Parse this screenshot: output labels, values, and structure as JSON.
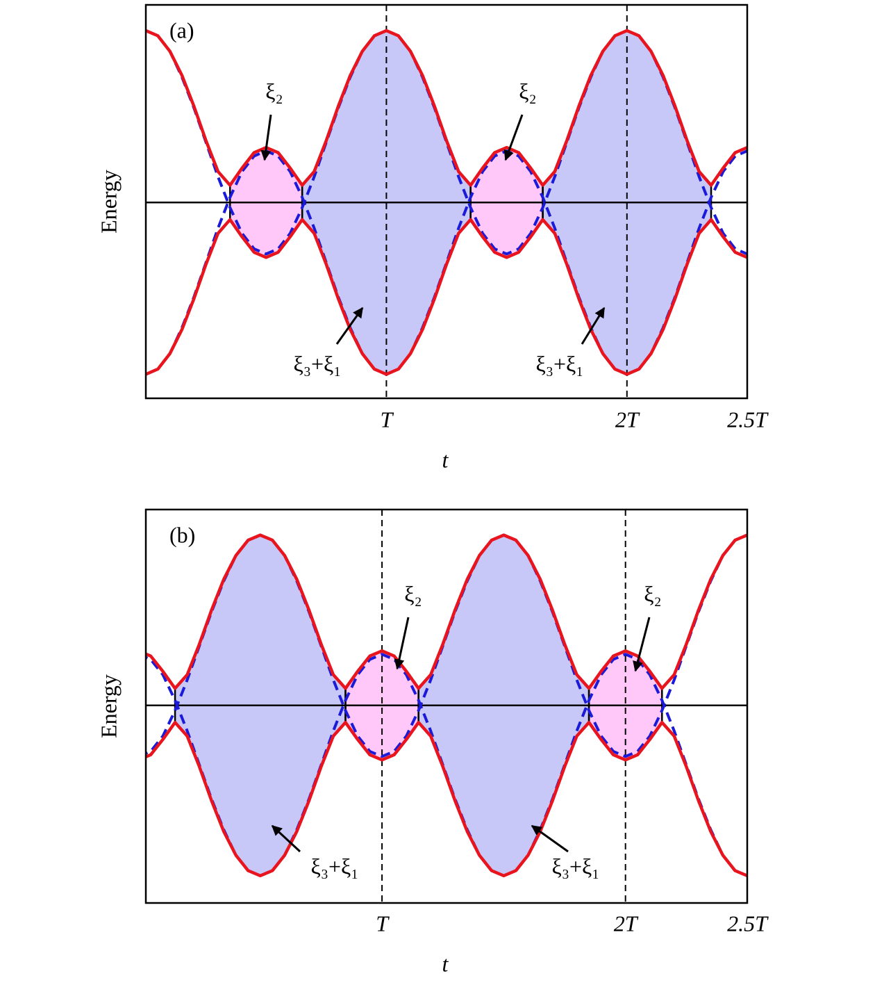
{
  "chart_data": [
    {
      "type": "line",
      "panel_label": "(a)",
      "ylabel": "Energy",
      "xlabel": "t",
      "xlim": [
        0,
        2.5
      ],
      "ylim": [
        -1.14,
        1.15
      ],
      "xticks": [
        {
          "value": 1,
          "label": "T"
        },
        {
          "value": 2,
          "label": "2T"
        },
        {
          "value": 2.5,
          "label": "2.5T"
        }
      ],
      "grid": "x",
      "baseline": 0,
      "x": [
        0,
        0.05,
        0.1,
        0.15,
        0.2,
        0.25,
        0.3,
        0.35,
        0.4,
        0.45,
        0.5,
        0.55,
        0.6,
        0.65,
        0.7,
        0.75,
        0.8,
        0.85,
        0.9,
        0.95,
        1,
        1.05,
        1.1,
        1.15,
        1.2,
        1.25,
        1.3,
        1.35,
        1.4,
        1.45,
        1.5,
        1.55,
        1.6,
        1.65,
        1.7,
        1.75,
        1.8,
        1.85,
        1.9,
        1.95,
        2,
        2.05,
        2.1,
        2.15,
        2.2,
        2.25,
        2.3,
        2.35,
        2.4,
        2.45,
        2.5
      ],
      "series": [
        {
          "color": "#e8141e",
          "dash": false,
          "values": [
            1,
            0.97,
            0.88,
            0.74,
            0.56,
            0.36,
            0.18,
            0.1,
            0.2,
            0.29,
            0.32,
            0.29,
            0.2,
            0.1,
            0.18,
            0.36,
            0.56,
            0.74,
            0.88,
            0.97,
            1,
            0.97,
            0.88,
            0.74,
            0.56,
            0.36,
            0.18,
            0.1,
            0.2,
            0.29,
            0.32,
            0.29,
            0.2,
            0.1,
            0.18,
            0.36,
            0.56,
            0.74,
            0.88,
            0.97,
            1,
            0.97,
            0.88,
            0.74,
            0.56,
            0.36,
            0.18,
            0.1,
            0.2,
            0.29,
            0.32
          ]
        },
        {
          "color": "#e8141e",
          "dash": false,
          "values": [
            -1,
            -0.97,
            -0.88,
            -0.74,
            -0.56,
            -0.36,
            -0.18,
            -0.1,
            -0.2,
            -0.29,
            -0.32,
            -0.29,
            -0.2,
            -0.1,
            -0.18,
            -0.36,
            -0.56,
            -0.74,
            -0.88,
            -0.97,
            -1,
            -0.97,
            -0.88,
            -0.74,
            -0.56,
            -0.36,
            -0.18,
            -0.1,
            -0.2,
            -0.29,
            -0.32,
            -0.29,
            -0.2,
            -0.1,
            -0.18,
            -0.36,
            -0.56,
            -0.74,
            -0.88,
            -0.97,
            -1,
            -0.97,
            -0.88,
            -0.74,
            -0.56,
            -0.36,
            -0.18,
            -0.1,
            -0.2,
            -0.29,
            -0.32
          ]
        },
        {
          "color": "#1a1ad8",
          "dash": true,
          "values": [
            1,
            0.97,
            0.88,
            0.73,
            0.55,
            0.35,
            0.15,
            -0.03,
            -0.18,
            -0.27,
            -0.3,
            -0.27,
            -0.18,
            -0.03,
            0.15,
            0.35,
            0.55,
            0.73,
            0.88,
            0.97,
            1,
            0.97,
            0.88,
            0.73,
            0.55,
            0.35,
            0.15,
            -0.03,
            -0.18,
            -0.27,
            -0.3,
            -0.27,
            -0.18,
            -0.03,
            0.15,
            0.35,
            0.55,
            0.73,
            0.88,
            0.97,
            1,
            0.97,
            0.88,
            0.73,
            0.55,
            0.35,
            0.15,
            -0.03,
            -0.18,
            -0.27,
            -0.3
          ]
        },
        {
          "color": "#1a1ad8",
          "dash": true,
          "values": [
            -1,
            -0.97,
            -0.88,
            -0.73,
            -0.55,
            -0.35,
            -0.15,
            0.03,
            0.18,
            0.27,
            0.3,
            0.27,
            0.18,
            0.03,
            -0.15,
            -0.35,
            -0.55,
            -0.73,
            -0.88,
            -0.97,
            -1,
            -0.97,
            -0.88,
            -0.73,
            -0.55,
            -0.35,
            -0.15,
            0.03,
            0.18,
            0.27,
            0.3,
            0.27,
            0.18,
            0.03,
            -0.15,
            -0.35,
            -0.55,
            -0.73,
            -0.88,
            -0.97,
            -1,
            -0.97,
            -0.88,
            -0.73,
            -0.55,
            -0.35,
            -0.15,
            0.03,
            0.18,
            0.27,
            0.3
          ]
        }
      ],
      "regions": [
        {
          "x": [
            0.35,
            0.65
          ],
          "color": "#ffc8f8"
        },
        {
          "x": [
            0.65,
            1.35
          ],
          "color": "#c8c8f8"
        },
        {
          "x": [
            1.35,
            1.65
          ],
          "color": "#ffc8f8"
        },
        {
          "x": [
            1.65,
            2.35
          ],
          "color": "#c8c8f8"
        }
      ],
      "annotations": [
        {
          "text": "ξ₂"
        },
        {
          "text": "ξ₂"
        },
        {
          "text": "ξ₃+ξ₁"
        },
        {
          "text": "ξ₃+ξ₁"
        }
      ]
    },
    {
      "type": "line",
      "panel_label": "(b)",
      "ylabel": "Energy",
      "xlabel": "t",
      "xlim": [
        0.03,
        2.5
      ],
      "ylim": [
        -1.16,
        1.15
      ],
      "xticks": [
        {
          "value": 1,
          "label": "T"
        },
        {
          "value": 2,
          "label": "2T"
        },
        {
          "value": 2.5,
          "label": "2.5T"
        }
      ],
      "grid": "x",
      "baseline": 0,
      "x": [
        0,
        0.05,
        0.1,
        0.15,
        0.2,
        0.25,
        0.3,
        0.35,
        0.4,
        0.45,
        0.5,
        0.55,
        0.6,
        0.65,
        0.7,
        0.75,
        0.8,
        0.85,
        0.9,
        0.95,
        1,
        1.05,
        1.1,
        1.15,
        1.2,
        1.25,
        1.3,
        1.35,
        1.4,
        1.45,
        1.5,
        1.55,
        1.6,
        1.65,
        1.7,
        1.75,
        1.8,
        1.85,
        1.9,
        1.95,
        2,
        2.05,
        2.1,
        2.15,
        2.2,
        2.25,
        2.3,
        2.35,
        2.4,
        2.45,
        2.5
      ],
      "series": [
        {
          "color": "#e8141e",
          "dash": false,
          "values": [
            0.32,
            0.29,
            0.2,
            0.1,
            0.18,
            0.36,
            0.56,
            0.74,
            0.88,
            0.97,
            1,
            0.97,
            0.88,
            0.74,
            0.56,
            0.36,
            0.18,
            0.1,
            0.2,
            0.29,
            0.32,
            0.29,
            0.2,
            0.1,
            0.18,
            0.36,
            0.56,
            0.74,
            0.88,
            0.97,
            1,
            0.97,
            0.88,
            0.74,
            0.56,
            0.36,
            0.18,
            0.1,
            0.2,
            0.29,
            0.32,
            0.29,
            0.2,
            0.1,
            0.18,
            0.36,
            0.56,
            0.74,
            0.88,
            0.97,
            1
          ]
        },
        {
          "color": "#e8141e",
          "dash": false,
          "values": [
            -0.32,
            -0.29,
            -0.2,
            -0.1,
            -0.18,
            -0.36,
            -0.56,
            -0.74,
            -0.88,
            -0.97,
            -1,
            -0.97,
            -0.88,
            -0.74,
            -0.56,
            -0.36,
            -0.18,
            -0.1,
            -0.2,
            -0.29,
            -0.32,
            -0.29,
            -0.2,
            -0.1,
            -0.18,
            -0.36,
            -0.56,
            -0.74,
            -0.88,
            -0.97,
            -1,
            -0.97,
            -0.88,
            -0.74,
            -0.56,
            -0.36,
            -0.18,
            -0.1,
            -0.2,
            -0.29,
            -0.32,
            -0.29,
            -0.2,
            -0.1,
            -0.18,
            -0.36,
            -0.56,
            -0.74,
            -0.88,
            -0.97,
            -1
          ]
        },
        {
          "color": "#1a1ad8",
          "dash": true,
          "values": [
            -0.3,
            -0.27,
            -0.18,
            -0.03,
            0.15,
            0.35,
            0.55,
            0.73,
            0.88,
            0.97,
            1,
            0.97,
            0.88,
            0.73,
            0.55,
            0.35,
            0.15,
            -0.03,
            -0.18,
            -0.27,
            -0.3,
            -0.27,
            -0.18,
            -0.03,
            0.15,
            0.35,
            0.55,
            0.73,
            0.88,
            0.97,
            1,
            0.97,
            0.88,
            0.73,
            0.55,
            0.35,
            0.15,
            -0.03,
            -0.18,
            -0.27,
            -0.3,
            -0.27,
            -0.18,
            -0.03,
            0.15,
            0.35,
            0.55,
            0.73,
            0.88,
            0.97,
            1
          ]
        },
        {
          "color": "#1a1ad8",
          "dash": true,
          "values": [
            0.3,
            0.27,
            0.18,
            0.03,
            -0.15,
            -0.35,
            -0.55,
            -0.73,
            -0.88,
            -0.97,
            -1,
            -0.97,
            -0.88,
            -0.73,
            -0.55,
            -0.35,
            -0.15,
            0.03,
            0.18,
            0.27,
            0.3,
            0.27,
            0.18,
            0.03,
            -0.15,
            -0.35,
            -0.55,
            -0.73,
            -0.88,
            -0.97,
            -1,
            -0.97,
            -0.88,
            -0.73,
            -0.55,
            -0.35,
            -0.15,
            0.03,
            0.18,
            0.27,
            0.3,
            0.27,
            0.18,
            0.03,
            -0.15,
            -0.35,
            -0.55,
            -0.73,
            -0.88,
            -0.97,
            -1
          ]
        }
      ],
      "regions": [
        {
          "x": [
            0.15,
            0.85
          ],
          "color": "#c8c8f8"
        },
        {
          "x": [
            0.85,
            1.15
          ],
          "color": "#ffc8f8"
        },
        {
          "x": [
            1.15,
            1.85
          ],
          "color": "#c8c8f8"
        },
        {
          "x": [
            1.85,
            2.15
          ],
          "color": "#ffc8f8"
        }
      ],
      "annotations": [
        {
          "text": "ξ₂"
        },
        {
          "text": "ξ₂"
        },
        {
          "text": "ξ₃+ξ₁"
        },
        {
          "text": "ξ₃+ξ₁"
        }
      ]
    }
  ]
}
